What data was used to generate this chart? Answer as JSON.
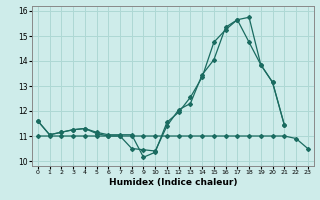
{
  "xlabel": "Humidex (Indice chaleur)",
  "bg_color": "#ceecea",
  "grid_color": "#aed8d4",
  "line_color": "#1a6b60",
  "xlim": [
    -0.5,
    23.5
  ],
  "ylim": [
    9.8,
    16.2
  ],
  "yticks": [
    10,
    11,
    12,
    13,
    14,
    15,
    16
  ],
  "xticks": [
    0,
    1,
    2,
    3,
    4,
    5,
    6,
    7,
    8,
    9,
    10,
    11,
    12,
    13,
    14,
    15,
    16,
    17,
    18,
    19,
    20,
    21,
    22,
    23
  ],
  "curve1_x": [
    0,
    1,
    2,
    3,
    4,
    5,
    6,
    7,
    8,
    9,
    10,
    11,
    12,
    13,
    14,
    15,
    16,
    17,
    18,
    19,
    20,
    21
  ],
  "curve1_y": [
    11.6,
    11.05,
    11.15,
    11.25,
    11.3,
    11.15,
    11.05,
    11.05,
    11.05,
    10.15,
    10.35,
    11.55,
    11.95,
    12.55,
    13.35,
    14.75,
    15.25,
    15.65,
    15.75,
    13.85,
    13.15,
    11.45
  ],
  "curve2_x": [
    0,
    1,
    2,
    3,
    4,
    5,
    6,
    7,
    8,
    9,
    10,
    11,
    12,
    13,
    14,
    15,
    16,
    17,
    18,
    19,
    20,
    21
  ],
  "curve2_y": [
    11.6,
    11.05,
    11.15,
    11.25,
    11.3,
    11.1,
    11.0,
    11.0,
    10.5,
    10.45,
    10.4,
    11.4,
    12.05,
    12.3,
    13.45,
    14.05,
    15.35,
    15.65,
    14.75,
    13.85,
    13.15,
    11.45
  ],
  "curve3_x": [
    0,
    1,
    2,
    3,
    4,
    5,
    6,
    7,
    8,
    9,
    10,
    11,
    12,
    13,
    14,
    15,
    16,
    17,
    18,
    19,
    20,
    21,
    22,
    23
  ],
  "curve3_y": [
    11.0,
    11.0,
    11.0,
    11.0,
    11.0,
    11.0,
    11.0,
    11.0,
    11.0,
    11.0,
    11.0,
    11.0,
    11.0,
    11.0,
    11.0,
    11.0,
    11.0,
    11.0,
    11.0,
    11.0,
    11.0,
    11.0,
    10.9,
    10.5
  ]
}
